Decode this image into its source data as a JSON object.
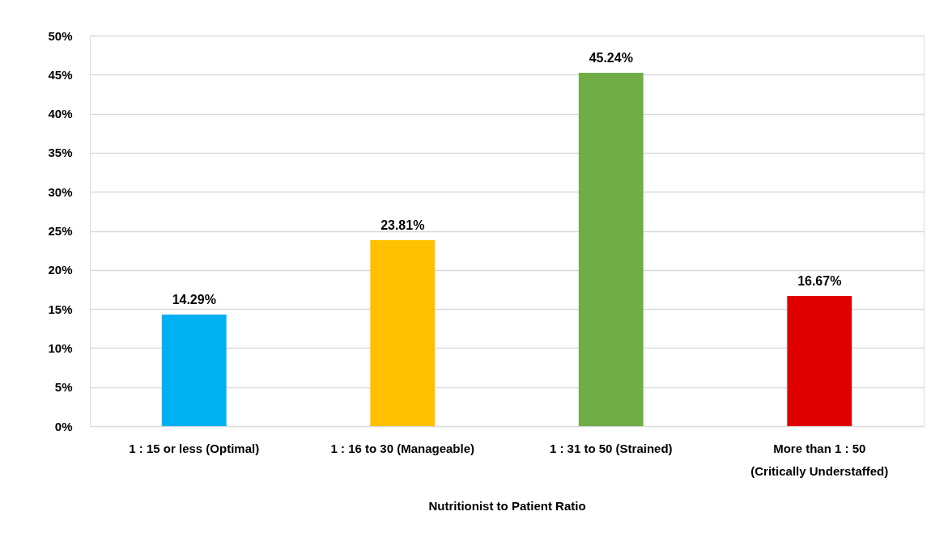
{
  "chart_data": {
    "type": "bar",
    "xlabel": "Nutritionist to Patient Ratio",
    "categories": [
      "1 : 15 or less (Optimal)",
      "1 : 16 to 30 (Manageable)",
      "1 : 31 to 50 (Strained)",
      "More than 1 : 50\n(Critically Understaffed)"
    ],
    "values": [
      14.29,
      23.81,
      45.24,
      16.67
    ],
    "colors": [
      "#00b0f0",
      "#ffc000",
      "#70ad47",
      "#e00000"
    ],
    "value_labels": [
      "14.29%",
      "23.81%",
      "45.24%",
      "16.67%"
    ],
    "ylim": [
      0,
      50
    ],
    "yticks": [
      {
        "value": 0,
        "label": "0%"
      },
      {
        "value": 5,
        "label": "5%"
      },
      {
        "value": 10,
        "label": "10%"
      },
      {
        "value": 15,
        "label": "15%"
      },
      {
        "value": 20,
        "label": "20%"
      },
      {
        "value": 25,
        "label": "25%"
      },
      {
        "value": 30,
        "label": "30%"
      },
      {
        "value": 35,
        "label": "35%"
      },
      {
        "value": 40,
        "label": "40%"
      },
      {
        "value": 45,
        "label": "45%"
      },
      {
        "value": 50,
        "label": "50%"
      }
    ],
    "grid": "y"
  }
}
